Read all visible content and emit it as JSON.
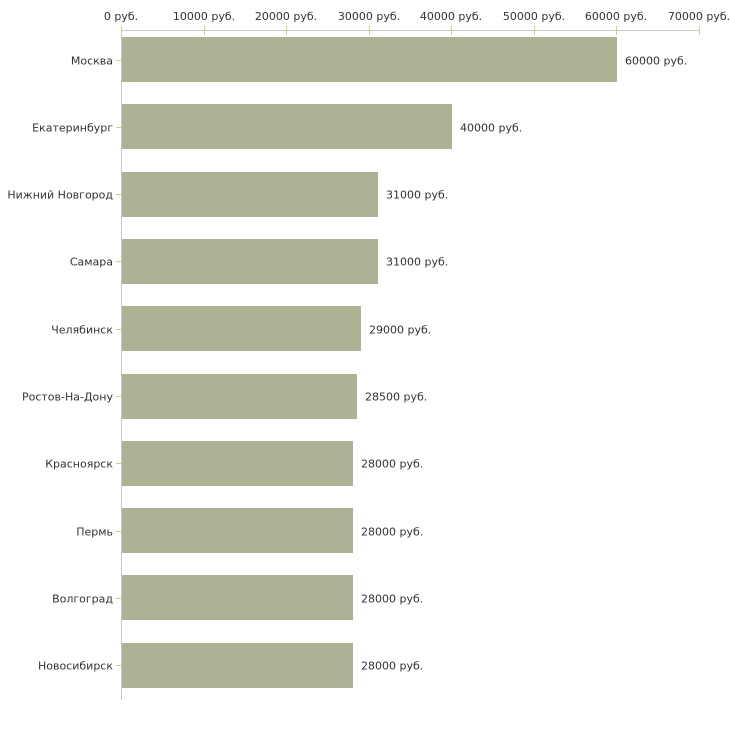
{
  "chart_data": {
    "type": "bar",
    "orientation": "horizontal",
    "title": "",
    "xlabel": "",
    "ylabel": "",
    "unit": "руб.",
    "categories": [
      "Москва",
      "Екатеринбург",
      "Нижний Новгород",
      "Самара",
      "Челябинск",
      "Ростов-На-Дону",
      "Красноярск",
      "Пермь",
      "Волгоград",
      "Новосибирск"
    ],
    "values": [
      60000,
      40000,
      31000,
      31000,
      29000,
      28500,
      28000,
      28000,
      28000,
      28000
    ],
    "bar_labels": [
      "60000 руб.",
      "40000 руб.",
      "31000 руб.",
      "31000 руб.",
      "29000 руб.",
      "28500 руб.",
      "28000 руб.",
      "28000 руб.",
      "28000 руб.",
      "28000 руб."
    ],
    "x_axis": {
      "position": "top",
      "range": [
        0,
        70000
      ],
      "ticks": [
        0,
        10000,
        20000,
        30000,
        40000,
        50000,
        60000,
        70000
      ],
      "tick_labels": [
        "0 руб.",
        "10000 руб.",
        "20000 руб.",
        "30000 руб.",
        "40000 руб.",
        "50000 руб.",
        "60000 руб.",
        "70000 руб."
      ]
    },
    "grid": false,
    "legend": false,
    "colors": {
      "bar": "#aeb295",
      "axis_line": "#c8c8c8",
      "tick_mark": "#cccc99",
      "text": "#333333",
      "background": "#ffffff"
    }
  }
}
